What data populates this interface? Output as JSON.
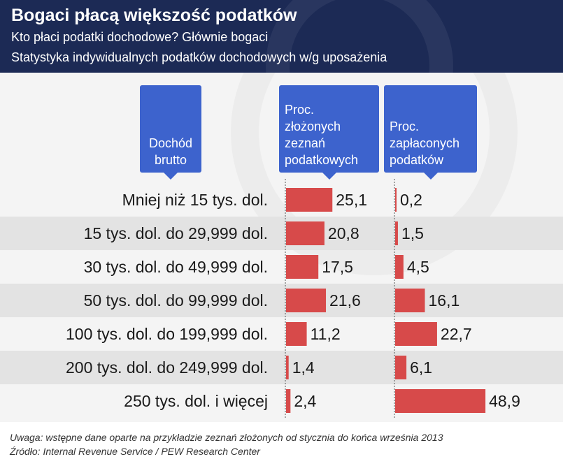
{
  "header": {
    "title": "Bogaci płacą większość podatków",
    "subtitle1": "Kto płaci podatki dochodowe? Głównie bogaci",
    "subtitle2": "Statystyka indywidualnych podatków dochodowych w/g uposażenia"
  },
  "columns": {
    "income": "Dochód\nbrutto",
    "returns": "Proc.\nzłożonych\nzeznań\npodatkowych",
    "paid": "Proc.\nzapłaconych\npodatków"
  },
  "colors": {
    "bar": "#d74a4a",
    "header_bg": "#1c2a55",
    "callout_bg": "#3d63cd"
  },
  "chart_data": {
    "type": "bar",
    "orientation": "horizontal",
    "categories": [
      "Mniej niż 15 tys. dol.",
      "15 tys. dol. do 29,999 dol.",
      "30 tys. dol. do 49,999 dol.",
      "50 tys. dol. do 99,999 dol.",
      "100 tys. dol. do 199,999 dol.",
      "200 tys. dol. do 249,999 dol.",
      "250 tys. dol. i więcej"
    ],
    "series": [
      {
        "name": "Proc. złożonych zeznań podatkowych",
        "values": [
          25.1,
          20.8,
          17.5,
          21.6,
          11.2,
          1.4,
          2.4
        ],
        "labels": [
          "25,1",
          "20,8",
          "17,5",
          "21,6",
          "11,2",
          "1,4",
          "2,4"
        ]
      },
      {
        "name": "Proc. zapłaconych podatków",
        "values": [
          0.2,
          1.5,
          4.5,
          16.1,
          22.7,
          6.1,
          48.9
        ],
        "labels": [
          "0,2",
          "1,5",
          "4,5",
          "16,1",
          "22,7",
          "6,1",
          "48,9"
        ]
      }
    ]
  },
  "footer": {
    "note": "Uwaga: wstępne dane oparte na przykładzie zeznań złożonych od stycznia do końca września 2013",
    "source": "Źródło: Internal Revenue Service / PEW Research Center"
  }
}
